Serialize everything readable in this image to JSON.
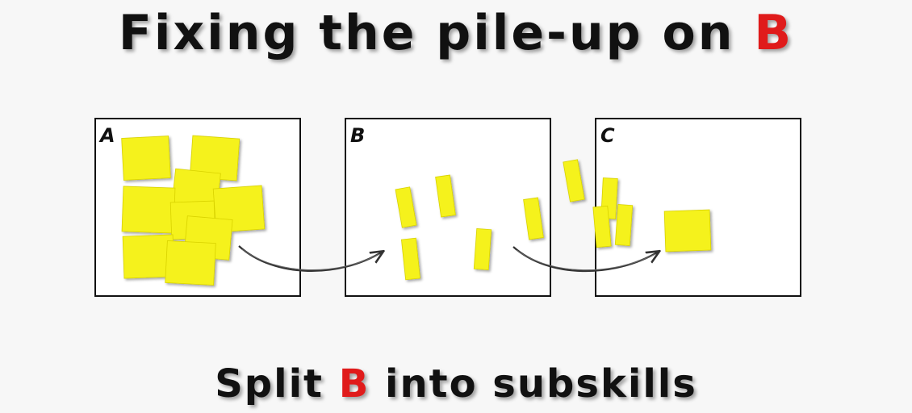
{
  "title": {
    "prefix": "Fixing the pile-up on",
    "highlight": "B"
  },
  "subtitle": {
    "prefix": "Split",
    "highlight": "B",
    "suffix": "into subskills"
  },
  "panels": [
    {
      "label": "A"
    },
    {
      "label": "B"
    },
    {
      "label": "C"
    }
  ],
  "colors": {
    "note_fill": "#f5f21a",
    "accent": "#e01b1b",
    "panel_border": "#111111",
    "arrow": "#333333"
  }
}
